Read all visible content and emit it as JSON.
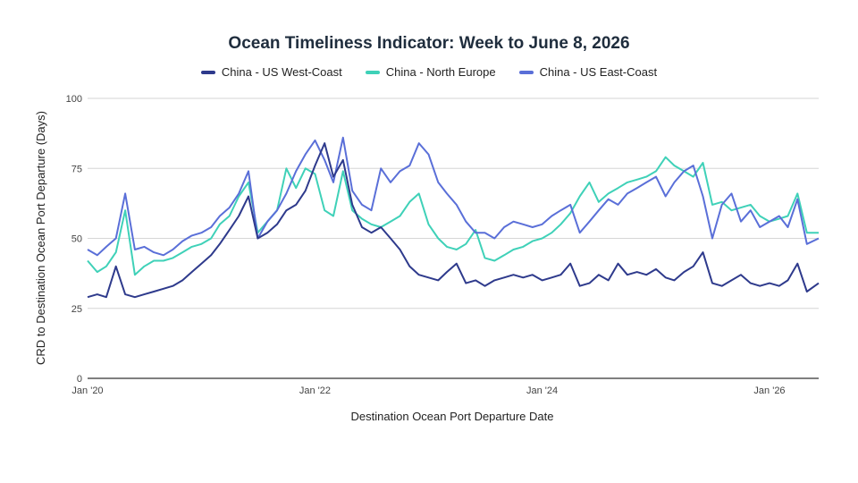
{
  "chart_data": {
    "type": "line",
    "title": "Ocean Timeliness Indicator: Week to June 8, 2026",
    "xlabel": "Destination Ocean Port Departure Date",
    "ylabel": "CRD to Destination Ocean Port Departure (Days)",
    "ylim": [
      0,
      100
    ],
    "yticks": [
      "0",
      "25",
      "50",
      "75",
      "100"
    ],
    "xlim": [
      "2020-01-01",
      "2026-06-08"
    ],
    "xticks": [
      {
        "date": "2020-01-01",
        "label": "Jan '20"
      },
      {
        "date": "2022-01-01",
        "label": "Jan '22"
      },
      {
        "date": "2024-01-01",
        "label": "Jan '24"
      },
      {
        "date": "2026-01-01",
        "label": "Jan '26"
      }
    ],
    "grid": true,
    "legend": "top-center",
    "series": [
      {
        "name": "China - US West-Coast",
        "color": "#2e3a8c",
        "points": [
          [
            "2020-01-01",
            29
          ],
          [
            "2020-02-01",
            30
          ],
          [
            "2020-03-01",
            29
          ],
          [
            "2020-04-01",
            40
          ],
          [
            "2020-05-01",
            30
          ],
          [
            "2020-06-01",
            29
          ],
          [
            "2020-07-01",
            30
          ],
          [
            "2020-08-01",
            31
          ],
          [
            "2020-09-01",
            32
          ],
          [
            "2020-10-01",
            33
          ],
          [
            "2020-11-01",
            35
          ],
          [
            "2020-12-01",
            38
          ],
          [
            "2021-01-01",
            41
          ],
          [
            "2021-02-01",
            44
          ],
          [
            "2021-03-01",
            48
          ],
          [
            "2021-04-01",
            53
          ],
          [
            "2021-05-01",
            58
          ],
          [
            "2021-06-01",
            65
          ],
          [
            "2021-07-01",
            50
          ],
          [
            "2021-08-01",
            52
          ],
          [
            "2021-09-01",
            55
          ],
          [
            "2021-10-01",
            60
          ],
          [
            "2021-11-01",
            62
          ],
          [
            "2021-12-01",
            67
          ],
          [
            "2022-01-01",
            76
          ],
          [
            "2022-02-01",
            84
          ],
          [
            "2022-03-01",
            72
          ],
          [
            "2022-04-01",
            78
          ],
          [
            "2022-05-01",
            62
          ],
          [
            "2022-06-01",
            54
          ],
          [
            "2022-07-01",
            52
          ],
          [
            "2022-08-01",
            54
          ],
          [
            "2022-09-01",
            50
          ],
          [
            "2022-10-01",
            46
          ],
          [
            "2022-11-01",
            40
          ],
          [
            "2022-12-01",
            37
          ],
          [
            "2023-01-01",
            36
          ],
          [
            "2023-02-01",
            35
          ],
          [
            "2023-03-01",
            38
          ],
          [
            "2023-04-01",
            41
          ],
          [
            "2023-05-01",
            34
          ],
          [
            "2023-06-01",
            35
          ],
          [
            "2023-07-01",
            33
          ],
          [
            "2023-08-01",
            35
          ],
          [
            "2023-09-01",
            36
          ],
          [
            "2023-10-01",
            37
          ],
          [
            "2023-11-01",
            36
          ],
          [
            "2023-12-01",
            37
          ],
          [
            "2024-01-01",
            35
          ],
          [
            "2024-02-01",
            36
          ],
          [
            "2024-03-01",
            37
          ],
          [
            "2024-04-01",
            41
          ],
          [
            "2024-05-01",
            33
          ],
          [
            "2024-06-01",
            34
          ],
          [
            "2024-07-01",
            37
          ],
          [
            "2024-08-01",
            35
          ],
          [
            "2024-09-01",
            41
          ],
          [
            "2024-10-01",
            37
          ],
          [
            "2024-11-01",
            38
          ],
          [
            "2024-12-01",
            37
          ],
          [
            "2025-01-01",
            39
          ],
          [
            "2025-02-01",
            36
          ],
          [
            "2025-03-01",
            35
          ],
          [
            "2025-04-01",
            38
          ],
          [
            "2025-05-01",
            40
          ],
          [
            "2025-06-01",
            45
          ],
          [
            "2025-07-01",
            34
          ],
          [
            "2025-08-01",
            33
          ],
          [
            "2025-09-01",
            35
          ],
          [
            "2025-10-01",
            37
          ],
          [
            "2025-11-01",
            34
          ],
          [
            "2025-12-01",
            33
          ],
          [
            "2026-01-01",
            34
          ],
          [
            "2026-02-01",
            33
          ],
          [
            "2026-03-01",
            35
          ],
          [
            "2026-04-01",
            41
          ],
          [
            "2026-05-01",
            31
          ],
          [
            "2026-06-08",
            34
          ]
        ]
      },
      {
        "name": "China - North Europe",
        "color": "#3fd1b8",
        "points": [
          [
            "2020-01-01",
            42
          ],
          [
            "2020-02-01",
            38
          ],
          [
            "2020-03-01",
            40
          ],
          [
            "2020-04-01",
            45
          ],
          [
            "2020-05-01",
            60
          ],
          [
            "2020-06-01",
            37
          ],
          [
            "2020-07-01",
            40
          ],
          [
            "2020-08-01",
            42
          ],
          [
            "2020-09-01",
            42
          ],
          [
            "2020-10-01",
            43
          ],
          [
            "2020-11-01",
            45
          ],
          [
            "2020-12-01",
            47
          ],
          [
            "2021-01-01",
            48
          ],
          [
            "2021-02-01",
            50
          ],
          [
            "2021-03-01",
            55
          ],
          [
            "2021-04-01",
            58
          ],
          [
            "2021-05-01",
            65
          ],
          [
            "2021-06-01",
            70
          ],
          [
            "2021-07-01",
            52
          ],
          [
            "2021-08-01",
            56
          ],
          [
            "2021-09-01",
            60
          ],
          [
            "2021-10-01",
            75
          ],
          [
            "2021-11-01",
            68
          ],
          [
            "2021-12-01",
            75
          ],
          [
            "2022-01-01",
            73
          ],
          [
            "2022-02-01",
            60
          ],
          [
            "2022-03-01",
            58
          ],
          [
            "2022-04-01",
            74
          ],
          [
            "2022-05-01",
            60
          ],
          [
            "2022-06-01",
            57
          ],
          [
            "2022-07-01",
            55
          ],
          [
            "2022-08-01",
            54
          ],
          [
            "2022-09-01",
            56
          ],
          [
            "2022-10-01",
            58
          ],
          [
            "2022-11-01",
            63
          ],
          [
            "2022-12-01",
            66
          ],
          [
            "2023-01-01",
            55
          ],
          [
            "2023-02-01",
            50
          ],
          [
            "2023-03-01",
            47
          ],
          [
            "2023-04-01",
            46
          ],
          [
            "2023-05-01",
            48
          ],
          [
            "2023-06-01",
            53
          ],
          [
            "2023-07-01",
            43
          ],
          [
            "2023-08-01",
            42
          ],
          [
            "2023-09-01",
            44
          ],
          [
            "2023-10-01",
            46
          ],
          [
            "2023-11-01",
            47
          ],
          [
            "2023-12-01",
            49
          ],
          [
            "2024-01-01",
            50
          ],
          [
            "2024-02-01",
            52
          ],
          [
            "2024-03-01",
            55
          ],
          [
            "2024-04-01",
            59
          ],
          [
            "2024-05-01",
            65
          ],
          [
            "2024-06-01",
            70
          ],
          [
            "2024-07-01",
            63
          ],
          [
            "2024-08-01",
            66
          ],
          [
            "2024-09-01",
            68
          ],
          [
            "2024-10-01",
            70
          ],
          [
            "2024-11-01",
            71
          ],
          [
            "2024-12-01",
            72
          ],
          [
            "2025-01-01",
            74
          ],
          [
            "2025-02-01",
            79
          ],
          [
            "2025-03-01",
            76
          ],
          [
            "2025-04-01",
            74
          ],
          [
            "2025-05-01",
            72
          ],
          [
            "2025-06-01",
            77
          ],
          [
            "2025-07-01",
            62
          ],
          [
            "2025-08-01",
            63
          ],
          [
            "2025-09-01",
            60
          ],
          [
            "2025-10-01",
            61
          ],
          [
            "2025-11-01",
            62
          ],
          [
            "2025-12-01",
            58
          ],
          [
            "2026-01-01",
            56
          ],
          [
            "2026-02-01",
            57
          ],
          [
            "2026-03-01",
            58
          ],
          [
            "2026-04-01",
            66
          ],
          [
            "2026-05-01",
            52
          ],
          [
            "2026-06-08",
            52
          ]
        ]
      },
      {
        "name": "China - US East-Coast",
        "color": "#5a6fd8",
        "points": [
          [
            "2020-01-01",
            46
          ],
          [
            "2020-02-01",
            44
          ],
          [
            "2020-03-01",
            47
          ],
          [
            "2020-04-01",
            50
          ],
          [
            "2020-05-01",
            66
          ],
          [
            "2020-06-01",
            46
          ],
          [
            "2020-07-01",
            47
          ],
          [
            "2020-08-01",
            45
          ],
          [
            "2020-09-01",
            44
          ],
          [
            "2020-10-01",
            46
          ],
          [
            "2020-11-01",
            49
          ],
          [
            "2020-12-01",
            51
          ],
          [
            "2021-01-01",
            52
          ],
          [
            "2021-02-01",
            54
          ],
          [
            "2021-03-01",
            58
          ],
          [
            "2021-04-01",
            61
          ],
          [
            "2021-05-01",
            66
          ],
          [
            "2021-06-01",
            74
          ],
          [
            "2021-07-01",
            50
          ],
          [
            "2021-08-01",
            56
          ],
          [
            "2021-09-01",
            60
          ],
          [
            "2021-10-01",
            66
          ],
          [
            "2021-11-01",
            74
          ],
          [
            "2021-12-01",
            80
          ],
          [
            "2022-01-01",
            85
          ],
          [
            "2022-02-01",
            78
          ],
          [
            "2022-03-01",
            70
          ],
          [
            "2022-04-01",
            86
          ],
          [
            "2022-05-01",
            67
          ],
          [
            "2022-06-01",
            62
          ],
          [
            "2022-07-01",
            60
          ],
          [
            "2022-08-01",
            75
          ],
          [
            "2022-09-01",
            70
          ],
          [
            "2022-10-01",
            74
          ],
          [
            "2022-11-01",
            76
          ],
          [
            "2022-12-01",
            84
          ],
          [
            "2023-01-01",
            80
          ],
          [
            "2023-02-01",
            70
          ],
          [
            "2023-03-01",
            66
          ],
          [
            "2023-04-01",
            62
          ],
          [
            "2023-05-01",
            56
          ],
          [
            "2023-06-01",
            52
          ],
          [
            "2023-07-01",
            52
          ],
          [
            "2023-08-01",
            50
          ],
          [
            "2023-09-01",
            54
          ],
          [
            "2023-10-01",
            56
          ],
          [
            "2023-11-01",
            55
          ],
          [
            "2023-12-01",
            54
          ],
          [
            "2024-01-01",
            55
          ],
          [
            "2024-02-01",
            58
          ],
          [
            "2024-03-01",
            60
          ],
          [
            "2024-04-01",
            62
          ],
          [
            "2024-05-01",
            52
          ],
          [
            "2024-06-01",
            56
          ],
          [
            "2024-07-01",
            60
          ],
          [
            "2024-08-01",
            64
          ],
          [
            "2024-09-01",
            62
          ],
          [
            "2024-10-01",
            66
          ],
          [
            "2024-11-01",
            68
          ],
          [
            "2024-12-01",
            70
          ],
          [
            "2025-01-01",
            72
          ],
          [
            "2025-02-01",
            65
          ],
          [
            "2025-03-01",
            70
          ],
          [
            "2025-04-01",
            74
          ],
          [
            "2025-05-01",
            76
          ],
          [
            "2025-06-01",
            65
          ],
          [
            "2025-07-01",
            50
          ],
          [
            "2025-08-01",
            62
          ],
          [
            "2025-09-01",
            66
          ],
          [
            "2025-10-01",
            56
          ],
          [
            "2025-11-01",
            60
          ],
          [
            "2025-12-01",
            54
          ],
          [
            "2026-01-01",
            56
          ],
          [
            "2026-02-01",
            58
          ],
          [
            "2026-03-01",
            54
          ],
          [
            "2026-04-01",
            64
          ],
          [
            "2026-05-01",
            48
          ],
          [
            "2026-06-08",
            50
          ]
        ]
      }
    ]
  }
}
